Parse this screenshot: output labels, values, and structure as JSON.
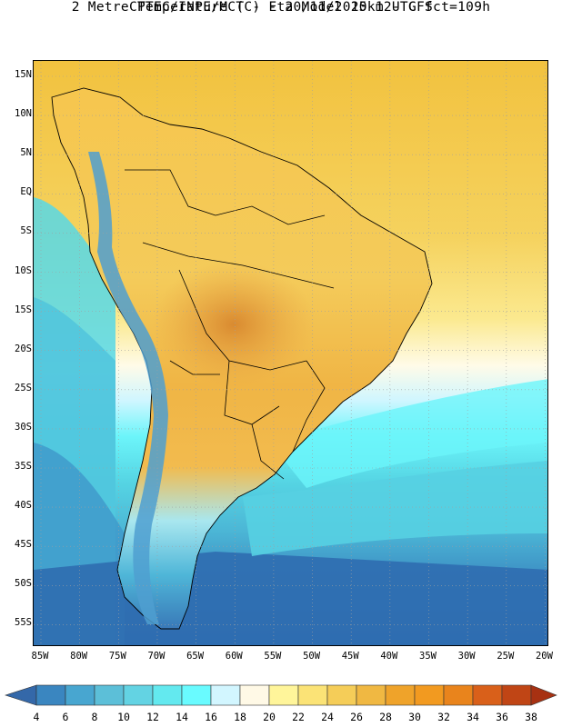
{
  "header": {
    "line1": "CPTEC/INPE/MCT -  Eta Model 15km - GFS",
    "line2": "2 Metre Temperature (C) - 20/11/2020 12UTC fct=109h"
  },
  "map": {
    "lat_labels": [
      "15N",
      "10N",
      "5N",
      "EQ",
      "5S",
      "10S",
      "15S",
      "20S",
      "25S",
      "30S",
      "35S",
      "40S",
      "45S",
      "50S",
      "55S"
    ],
    "lon_labels": [
      "85W",
      "80W",
      "75W",
      "70W",
      "65W",
      "60W",
      "55W",
      "50W",
      "45W",
      "40W",
      "35W",
      "30W",
      "25W",
      "20W"
    ],
    "colors": {
      "ocean_tropical": "#f2c74f",
      "ocean_subtropic": "#fbe98f",
      "ocean_cool": "#5fdde7",
      "ocean_cold": "#2f7fbf",
      "land_warm": "#f4c656",
      "land_hot": "#e39a3a",
      "andes": "#4f9fd0",
      "coastline": "#000000"
    }
  },
  "colorbar": {
    "labels": [
      "4",
      "6",
      "8",
      "10",
      "12",
      "14",
      "16",
      "18",
      "20",
      "22",
      "24",
      "26",
      "28",
      "30",
      "32",
      "34",
      "36",
      "38"
    ],
    "colors": [
      "#3468a9",
      "#3a86c0",
      "#48a6d0",
      "#5cbfd8",
      "#63d3e3",
      "#63e9ef",
      "#69fbff",
      "#d2f6ff",
      "#fff9e6",
      "#fff59a",
      "#fbe376",
      "#f5cd58",
      "#f0b842",
      "#efa32a",
      "#f29a20",
      "#e9841c",
      "#d9601a",
      "#c04515",
      "#a73112"
    ]
  }
}
